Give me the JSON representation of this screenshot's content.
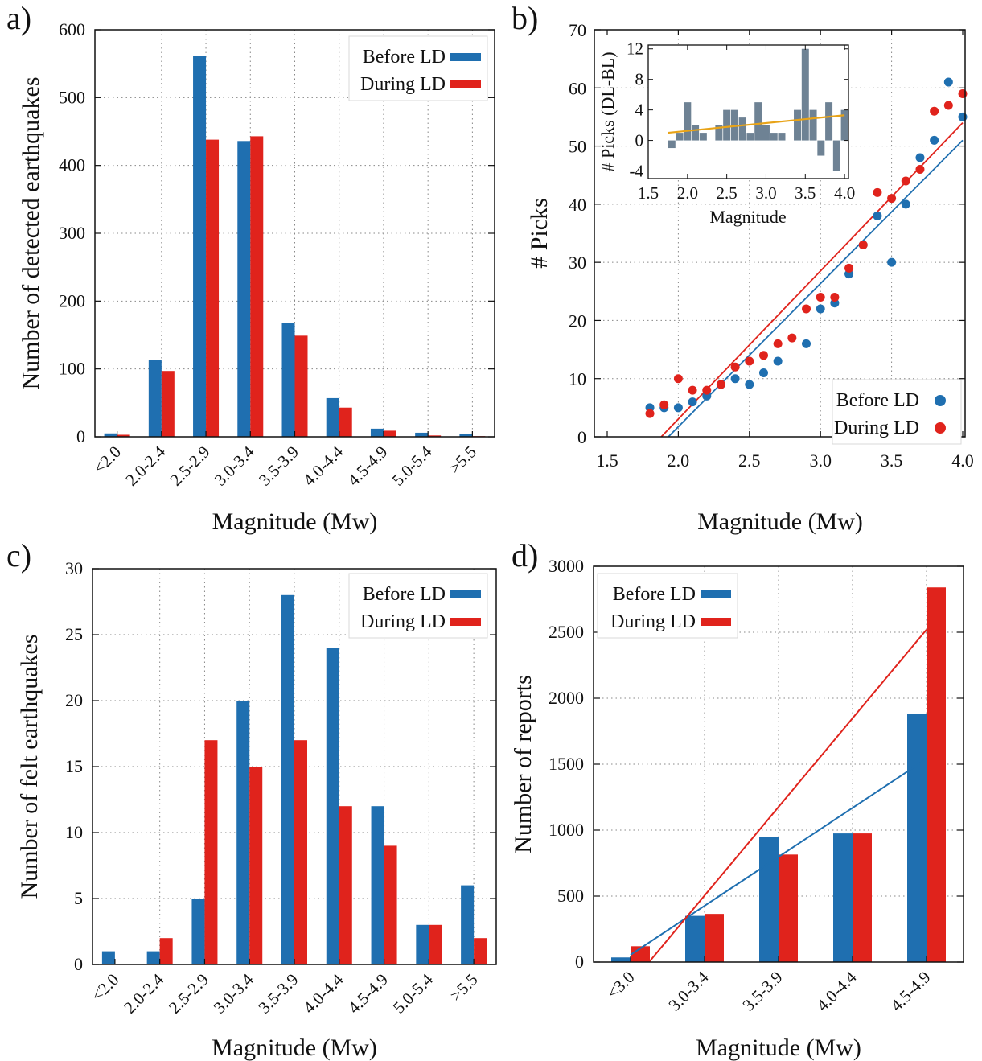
{
  "colors": {
    "before": "#1f6fb0",
    "during": "#e0231c",
    "inset_bar": "#6e8294",
    "inset_fit": "#e8a317",
    "grid": "#888888"
  },
  "chart_data": [
    {
      "panel": "a)",
      "type": "bar",
      "xlabel": "Magnitude (Mw)",
      "ylabel": "Number of detected earthquakes",
      "ylim": [
        0,
        600
      ],
      "yticks": [
        "0",
        "100",
        "200",
        "300",
        "400",
        "500",
        "600"
      ],
      "categories": [
        "<2.0",
        "2.0-2.4",
        "2.5-2.9",
        "3.0-3.4",
        "3.5-3.9",
        "4.0-4.4",
        "4.5-4.9",
        "5.0-5.4",
        ">5.5"
      ],
      "series": [
        {
          "name": "Before LD",
          "values": [
            5,
            113,
            561,
            436,
            168,
            57,
            12,
            6,
            4
          ]
        },
        {
          "name": "During LD",
          "values": [
            3,
            97,
            438,
            443,
            149,
            43,
            9,
            2,
            1
          ]
        }
      ],
      "legend": "top-right",
      "grid": true
    },
    {
      "panel": "b)",
      "type": "scatter",
      "xlabel": "Magnitude (Mw)",
      "ylabel": "# Picks",
      "xlim": [
        1.5,
        4.0
      ],
      "ylim": [
        0,
        70
      ],
      "xticks": [
        "1.5",
        "2.0",
        "2.5",
        "3.0",
        "3.5",
        "4.0"
      ],
      "yticks": [
        "0",
        "10",
        "20",
        "30",
        "40",
        "50",
        "60",
        "70"
      ],
      "series": [
        {
          "name": "Before LD",
          "x": [
            1.8,
            1.9,
            2.0,
            2.1,
            2.2,
            2.3,
            2.4,
            2.5,
            2.6,
            2.7,
            2.9,
            3.0,
            3.1,
            3.2,
            3.3,
            3.4,
            3.5,
            3.6,
            3.7,
            3.8,
            3.9,
            4.0
          ],
          "y": [
            5,
            5,
            5,
            6,
            7,
            9,
            10,
            9,
            11,
            13,
            16,
            22,
            23,
            28,
            33,
            38,
            30,
            40,
            48,
            51,
            61,
            55
          ]
        },
        {
          "name": "During LD",
          "x": [
            1.8,
            1.9,
            2.0,
            2.1,
            2.2,
            2.3,
            2.4,
            2.5,
            2.6,
            2.7,
            2.8,
            2.9,
            3.0,
            3.1,
            3.2,
            3.3,
            3.4,
            3.5,
            3.6,
            3.7,
            3.8,
            3.9,
            4.0
          ],
          "y": [
            4,
            5.5,
            10,
            8,
            8,
            9,
            12,
            13,
            14,
            16,
            17,
            22,
            24,
            24,
            29,
            33,
            42,
            41,
            44,
            46,
            56,
            57,
            59
          ]
        }
      ],
      "fits": [
        {
          "series": "Before LD",
          "x": [
            1.93,
            4.0
          ],
          "y": [
            0,
            51
          ]
        },
        {
          "series": "During LD",
          "x": [
            1.88,
            4.0
          ],
          "y": [
            0,
            54
          ]
        }
      ],
      "legend": "bottom-right",
      "grid": true,
      "inset": {
        "type": "bar",
        "xlabel": "Magnitude",
        "ylabel": "# Picks (DL-BL)",
        "xlim": [
          1.5,
          4.05
        ],
        "ylim": [
          -5,
          12.5
        ],
        "xticks": [
          "1.5",
          "2.0",
          "2.5",
          "3.0",
          "3.5",
          "4.0"
        ],
        "yticks": [
          "-4",
          "0",
          "4",
          "8",
          "12"
        ],
        "x": [
          1.8,
          1.9,
          2.0,
          2.1,
          2.2,
          2.3,
          2.4,
          2.5,
          2.6,
          2.7,
          2.8,
          2.9,
          3.0,
          3.1,
          3.2,
          3.3,
          3.4,
          3.5,
          3.6,
          3.7,
          3.8,
          3.9,
          4.0
        ],
        "values": [
          -1,
          1,
          5,
          2,
          1,
          0,
          2,
          4,
          4,
          3,
          1,
          5,
          2,
          1,
          1,
          0,
          4,
          12,
          4,
          -2,
          5,
          -4,
          4
        ],
        "fit": {
          "x": [
            1.75,
            4.0
          ],
          "y": [
            1,
            3.3
          ]
        }
      }
    },
    {
      "panel": "c)",
      "type": "bar",
      "xlabel": "Magnitude (Mw)",
      "ylabel": "Number of felt earthquakes",
      "ylim": [
        0,
        30
      ],
      "yticks": [
        "0",
        "5",
        "10",
        "15",
        "20",
        "25",
        "30"
      ],
      "categories": [
        "<2.0",
        "2.0-2.4",
        "2.5-2.9",
        "3.0-3.4",
        "3.5-3.9",
        "4.0-4.4",
        "4.5-4.9",
        "5.0-5.4",
        ">5.5"
      ],
      "series": [
        {
          "name": "Before LD",
          "values": [
            1,
            1,
            5,
            20,
            28,
            24,
            12,
            3,
            6
          ]
        },
        {
          "name": "During LD",
          "values": [
            0,
            2,
            17,
            15,
            17,
            12,
            9,
            3,
            2
          ]
        }
      ],
      "legend": "top-right",
      "grid": true
    },
    {
      "panel": "d)",
      "type": "bar",
      "xlabel": "Magnitude (Mw)",
      "ylabel": "Number of reports",
      "ylim": [
        0,
        3000
      ],
      "yticks": [
        "0",
        "500",
        "1000",
        "1500",
        "2000",
        "2500",
        "3000"
      ],
      "categories": [
        "<3.0",
        "3.0-3.4",
        "3.5-3.9",
        "4.0-4.4",
        "4.5-4.9"
      ],
      "series": [
        {
          "name": "Before LD",
          "values": [
            35,
            350,
            950,
            975,
            1880
          ]
        },
        {
          "name": "During LD",
          "values": [
            120,
            365,
            815,
            975,
            2840
          ]
        }
      ],
      "fits": [
        {
          "series": "Before LD",
          "from_category": 0,
          "to_category": 4,
          "y": [
            55,
            1540
          ]
        },
        {
          "series": "During LD",
          "from_category": 0.25,
          "to_category": 4,
          "y": [
            0,
            2520
          ]
        }
      ],
      "legend": "top-left",
      "grid": true
    }
  ]
}
